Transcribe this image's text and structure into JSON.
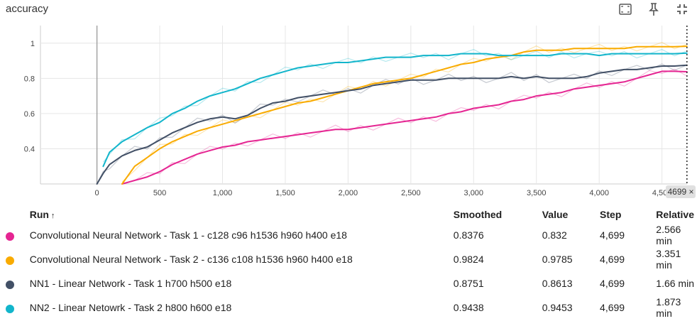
{
  "header": {
    "title": "accuracy",
    "icons": [
      "fit-domain-icon",
      "pin-icon",
      "collapse-icon"
    ]
  },
  "chart_data": {
    "type": "line",
    "title": "accuracy",
    "xlabel": "",
    "ylabel": "",
    "xlim": [
      -450,
      4700
    ],
    "ylim": [
      0.2,
      1.1
    ],
    "xticks": [
      0,
      500,
      1000,
      1500,
      2000,
      2500,
      3000,
      3500,
      4000,
      4500
    ],
    "xtick_labels": [
      "0",
      "500",
      "1,000",
      "1,500",
      "2,000",
      "2,500",
      "3,000",
      "3,500",
      "4,000",
      "4,500"
    ],
    "yticks": [
      0.4,
      0.6,
      0.8,
      1.0
    ],
    "ytick_labels": [
      "0.4",
      "0.6",
      "0.8",
      "1"
    ],
    "grid": true,
    "hover_step": 4699,
    "hover_label": "4699 ×",
    "series": [
      {
        "name": "Convolutional Neural Network - Task 1 - c128 c96 h1536 h960 h400 e18",
        "color": "#e52592",
        "x": [
          200,
          300,
          400,
          500,
          600,
          700,
          800,
          900,
          1000,
          1100,
          1200,
          1300,
          1400,
          1500,
          1600,
          1700,
          1800,
          1900,
          2000,
          2100,
          2200,
          2300,
          2400,
          2500,
          2600,
          2700,
          2800,
          2900,
          3000,
          3100,
          3200,
          3300,
          3400,
          3500,
          3600,
          3700,
          3800,
          3900,
          4000,
          4100,
          4200,
          4300,
          4400,
          4500,
          4600,
          4699
        ],
        "values": [
          0.2,
          0.22,
          0.24,
          0.27,
          0.31,
          0.34,
          0.37,
          0.39,
          0.41,
          0.42,
          0.44,
          0.45,
          0.46,
          0.47,
          0.48,
          0.49,
          0.5,
          0.51,
          0.51,
          0.52,
          0.53,
          0.54,
          0.55,
          0.56,
          0.57,
          0.58,
          0.6,
          0.61,
          0.63,
          0.64,
          0.65,
          0.67,
          0.68,
          0.7,
          0.71,
          0.72,
          0.74,
          0.75,
          0.76,
          0.77,
          0.78,
          0.8,
          0.82,
          0.84,
          0.84,
          0.8376
        ]
      },
      {
        "name": "Convolutional Neural Network - Task 2 - c136 c108 h1536 h960 h400 e18",
        "color": "#f9ab00",
        "x": [
          200,
          300,
          400,
          500,
          600,
          700,
          800,
          900,
          1000,
          1100,
          1200,
          1300,
          1400,
          1500,
          1600,
          1700,
          1800,
          1900,
          2000,
          2100,
          2200,
          2300,
          2400,
          2500,
          2600,
          2700,
          2800,
          2900,
          3000,
          3100,
          3200,
          3300,
          3400,
          3500,
          3600,
          3700,
          3800,
          3900,
          4000,
          4100,
          4200,
          4300,
          4400,
          4500,
          4600,
          4699
        ],
        "values": [
          0.2,
          0.3,
          0.35,
          0.4,
          0.44,
          0.47,
          0.5,
          0.52,
          0.54,
          0.56,
          0.58,
          0.6,
          0.62,
          0.64,
          0.66,
          0.67,
          0.69,
          0.71,
          0.73,
          0.75,
          0.77,
          0.78,
          0.79,
          0.8,
          0.82,
          0.84,
          0.86,
          0.88,
          0.89,
          0.91,
          0.92,
          0.93,
          0.95,
          0.96,
          0.96,
          0.96,
          0.97,
          0.97,
          0.97,
          0.97,
          0.97,
          0.98,
          0.98,
          0.98,
          0.98,
          0.9824
        ]
      },
      {
        "name": "NN1 - Linear Network - Task 1 h700 h500 e18",
        "color": "#425066",
        "x": [
          0,
          50,
          100,
          200,
          300,
          400,
          500,
          600,
          700,
          800,
          900,
          1000,
          1100,
          1200,
          1300,
          1400,
          1500,
          1600,
          1700,
          1800,
          1900,
          2000,
          2100,
          2200,
          2300,
          2400,
          2500,
          2600,
          2700,
          2800,
          2900,
          3000,
          3100,
          3200,
          3300,
          3400,
          3500,
          3600,
          3700,
          3800,
          3900,
          4000,
          4100,
          4200,
          4300,
          4400,
          4500,
          4600,
          4699
        ],
        "values": [
          0.2,
          0.26,
          0.31,
          0.36,
          0.39,
          0.41,
          0.45,
          0.49,
          0.52,
          0.55,
          0.57,
          0.58,
          0.57,
          0.59,
          0.63,
          0.66,
          0.67,
          0.69,
          0.7,
          0.71,
          0.72,
          0.73,
          0.74,
          0.76,
          0.77,
          0.78,
          0.79,
          0.79,
          0.79,
          0.8,
          0.8,
          0.8,
          0.8,
          0.8,
          0.81,
          0.8,
          0.81,
          0.8,
          0.8,
          0.8,
          0.81,
          0.83,
          0.84,
          0.85,
          0.85,
          0.86,
          0.87,
          0.87,
          0.8751
        ]
      },
      {
        "name": "NN2 - Linear Netowrk - Task 2 h800 h600 e18",
        "color": "#12b5cb",
        "x": [
          50,
          100,
          200,
          300,
          400,
          500,
          600,
          700,
          800,
          900,
          1000,
          1100,
          1200,
          1300,
          1400,
          1500,
          1600,
          1700,
          1800,
          1900,
          2000,
          2100,
          2200,
          2300,
          2400,
          2500,
          2600,
          2700,
          2800,
          2900,
          3000,
          3100,
          3200,
          3300,
          3400,
          3500,
          3600,
          3700,
          3800,
          3900,
          4000,
          4100,
          4200,
          4300,
          4400,
          4500,
          4600,
          4699
        ],
        "values": [
          0.3,
          0.38,
          0.44,
          0.48,
          0.52,
          0.55,
          0.6,
          0.63,
          0.67,
          0.7,
          0.72,
          0.74,
          0.77,
          0.8,
          0.82,
          0.84,
          0.86,
          0.87,
          0.88,
          0.89,
          0.89,
          0.9,
          0.91,
          0.92,
          0.92,
          0.92,
          0.93,
          0.93,
          0.93,
          0.94,
          0.94,
          0.94,
          0.93,
          0.93,
          0.93,
          0.93,
          0.93,
          0.94,
          0.94,
          0.94,
          0.93,
          0.94,
          0.94,
          0.94,
          0.94,
          0.94,
          0.94,
          0.9438
        ]
      }
    ]
  },
  "table": {
    "headers": {
      "run": "Run",
      "sort_indicator": "↑",
      "smoothed": "Smoothed",
      "value": "Value",
      "step": "Step",
      "relative": "Relative"
    },
    "rows": [
      {
        "color": "#e52592",
        "run": "Convolutional Neural Network - Task 1 - c128 c96 h1536 h960 h400 e18",
        "smoothed": "0.8376",
        "value": "0.832",
        "step": "4,699",
        "relative": "2.566 min"
      },
      {
        "color": "#f9ab00",
        "run": "Convolutional Neural Network - Task 2 - c136 c108 h1536 h960 h400 e18",
        "smoothed": "0.9824",
        "value": "0.9785",
        "step": "4,699",
        "relative": "3.351 min"
      },
      {
        "color": "#425066",
        "run": "NN1 - Linear Network - Task 1 h700 h500 e18",
        "smoothed": "0.8751",
        "value": "0.8613",
        "step": "4,699",
        "relative": "1.66 min"
      },
      {
        "color": "#12b5cb",
        "run": "NN2 - Linear Netowrk - Task 2 h800 h600 e18",
        "smoothed": "0.9438",
        "value": "0.9453",
        "step": "4,699",
        "relative": "1.873 min"
      }
    ]
  }
}
